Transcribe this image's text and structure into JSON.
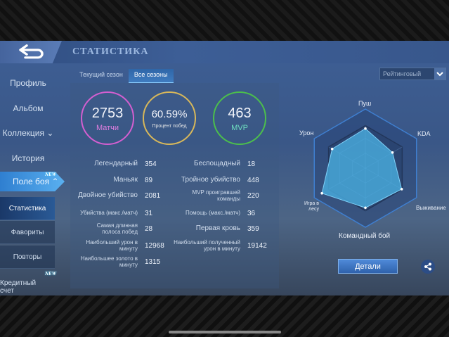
{
  "header": {
    "title": "СТАТИСТИКА",
    "back_icon": "back-arrow-icon"
  },
  "sidebar": {
    "items": [
      {
        "label": "Профиль"
      },
      {
        "label": "Альбом"
      },
      {
        "label": "Коллекция"
      },
      {
        "label": "История"
      }
    ],
    "active": {
      "label": "Поле боя",
      "badge": "NEW"
    },
    "sub": [
      {
        "label": "Статистика"
      },
      {
        "label": "Фавориты"
      },
      {
        "label": "Повторы"
      }
    ],
    "credit": {
      "label": "Кредитный счет",
      "badge": "NEW"
    }
  },
  "tabs": [
    {
      "label": "Текущий сезон"
    },
    {
      "label": "Все сезоны"
    }
  ],
  "dropdown": {
    "value": "Рейтинговый"
  },
  "rings": [
    {
      "value": "2753",
      "label": "Матчи",
      "color": "#d45fd0",
      "label_color": "#e07ee0"
    },
    {
      "value": "60.59%",
      "label": "Процент побед",
      "color": "#d8b85a",
      "label_color": "#e8e8e8"
    },
    {
      "value": "463",
      "label": "MVP",
      "color": "#4cbf4c",
      "label_color": "#6fe0c0"
    }
  ],
  "stats_left": [
    {
      "label": "Легендарный",
      "value": "354"
    },
    {
      "label": "Маньяк",
      "value": "89"
    },
    {
      "label": "Двойное убийство",
      "value": "2081"
    },
    {
      "label": "Убийства (макс./матч)",
      "value": "31"
    },
    {
      "label": "Самая длинная полоса побед",
      "value": "28"
    },
    {
      "label": "Наибольший урон в минуту",
      "value": "12968"
    },
    {
      "label": "Наибольшее золото в минуту",
      "value": "1315"
    }
  ],
  "stats_right": [
    {
      "label": "Беспощадный",
      "value": "18"
    },
    {
      "label": "Тройное убийство",
      "value": "448"
    },
    {
      "label": "MVP проигравшей команды",
      "value": "220"
    },
    {
      "label": "Помощь (макс./матч)",
      "value": "36"
    },
    {
      "label": "Первая кровь",
      "value": "359"
    },
    {
      "label": "Наибольший полученный урон в минуту",
      "value": "19142"
    }
  ],
  "radar": {
    "axes": [
      "Пуш",
      "KDA",
      "Выживание",
      "Командный бой",
      "Игра в лесу",
      "Урон"
    ],
    "values": [
      0.67,
      0.53,
      0.71,
      0.67,
      0.85,
      0.65
    ],
    "fill": "#4aaee0"
  },
  "buttons": {
    "details": "Детали",
    "share_icon": "share-icon"
  }
}
